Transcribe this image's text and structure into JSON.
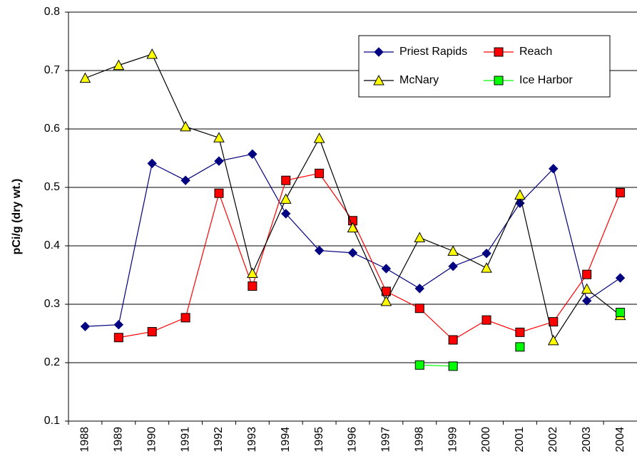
{
  "chart_data": {
    "type": "line",
    "y_label": "pCi/g (dry wt.)",
    "categories": [
      "1988",
      "1989",
      "1990",
      "1991",
      "1992",
      "1993",
      "1994",
      "1995",
      "1996",
      "1997",
      "1998",
      "1999",
      "2000",
      "2001",
      "2002",
      "2003",
      "2004"
    ],
    "ylim": [
      0.1,
      0.8
    ],
    "yticks": [
      0.1,
      0.2,
      0.3,
      0.4,
      0.5,
      0.6,
      0.7,
      0.8
    ],
    "grid": true,
    "series": [
      {
        "name": "Priest Rapids",
        "color": "#000080",
        "line_color": "#000080",
        "marker": "diamond",
        "values": [
          0.262,
          0.265,
          0.541,
          0.512,
          0.545,
          0.557,
          0.455,
          0.392,
          0.388,
          0.361,
          0.327,
          0.365,
          0.387,
          0.473,
          0.532,
          0.306,
          0.345
        ]
      },
      {
        "name": "Reach",
        "color": "#ff0000",
        "line_color": "#ff0000",
        "marker": "square",
        "values": [
          null,
          0.243,
          0.253,
          0.277,
          0.49,
          0.331,
          0.512,
          0.524,
          0.443,
          0.322,
          0.293,
          0.239,
          0.273,
          0.252,
          0.27,
          0.351,
          0.491
        ]
      },
      {
        "name": "McNary",
        "color": "#ffff00",
        "line_color": "#000000",
        "marker": "triangle",
        "values": [
          0.687,
          0.709,
          0.728,
          0.604,
          0.585,
          0.353,
          0.48,
          0.584,
          0.431,
          0.305,
          0.414,
          0.391,
          0.362,
          0.487,
          0.238,
          0.326,
          0.281
        ]
      },
      {
        "name": "Ice Harbor",
        "color": "#00ff00",
        "line_color": "#00ff00",
        "marker": "square",
        "values": [
          null,
          null,
          null,
          null,
          null,
          null,
          null,
          null,
          null,
          null,
          0.196,
          0.194,
          null,
          0.227,
          null,
          null,
          0.286
        ]
      }
    ]
  }
}
